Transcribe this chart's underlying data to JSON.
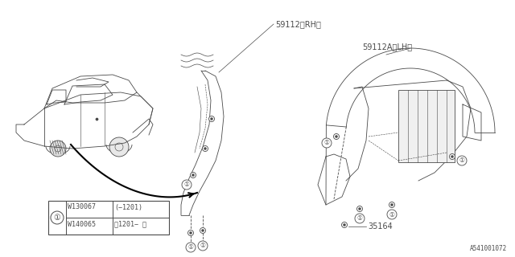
{
  "bg_color": "#ffffff",
  "line_color": "#4a4a4a",
  "text_color": "#4a4a4a",
  "diagram_id": "A541001072",
  "label_rh": "59112〈RH〉",
  "label_lh": "59112A〈LH〉",
  "label_35164": "35164",
  "legend_part1": "W130067",
  "legend_range1": "(−1201)",
  "legend_part2": "W140065",
  "legend_range2": "、1201− 〉",
  "figsize": [
    6.4,
    3.2
  ],
  "dpi": 100
}
